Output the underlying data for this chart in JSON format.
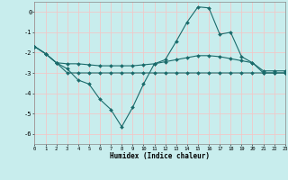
{
  "xlabel": "Humidex (Indice chaleur)",
  "bg_color": "#c8eded",
  "grid_color": "#f0c8c8",
  "line_color": "#1a6b6b",
  "xlim": [
    0,
    23
  ],
  "ylim": [
    -6.5,
    0.5
  ],
  "yticks": [
    0,
    -1,
    -2,
    -3,
    -4,
    -5,
    -6
  ],
  "xticks": [
    0,
    1,
    2,
    3,
    4,
    5,
    6,
    7,
    8,
    9,
    10,
    11,
    12,
    13,
    14,
    15,
    16,
    17,
    18,
    19,
    20,
    21,
    22,
    23
  ],
  "line1_x": [
    0,
    1,
    2,
    3,
    4,
    5,
    6,
    7,
    8,
    9,
    10,
    11,
    12,
    13,
    14,
    15,
    16,
    17,
    18,
    19,
    20,
    21,
    22,
    23
  ],
  "line1_y": [
    -1.7,
    -2.05,
    -2.5,
    -2.8,
    -3.35,
    -3.55,
    -4.3,
    -4.8,
    -5.65,
    -4.7,
    -3.55,
    -2.55,
    -2.35,
    -1.45,
    -0.5,
    0.25,
    0.2,
    -1.1,
    -1.0,
    -2.2,
    -2.5,
    -3.0,
    -3.0,
    -3.0
  ],
  "line2_x": [
    0,
    1,
    2,
    3,
    4,
    5,
    6,
    7,
    8,
    9,
    10,
    11,
    12,
    13,
    14,
    15,
    16,
    17,
    18,
    19,
    20,
    21,
    22,
    23
  ],
  "line2_y": [
    -1.7,
    -2.05,
    -2.5,
    -2.55,
    -2.55,
    -2.6,
    -2.65,
    -2.65,
    -2.65,
    -2.65,
    -2.6,
    -2.55,
    -2.45,
    -2.35,
    -2.25,
    -2.15,
    -2.15,
    -2.2,
    -2.3,
    -2.4,
    -2.5,
    -2.9,
    -2.9,
    -2.9
  ],
  "line3_x": [
    0,
    1,
    2,
    3,
    4,
    5,
    6,
    7,
    8,
    9,
    10,
    11,
    12,
    13,
    14,
    15,
    16,
    17,
    18,
    19,
    20,
    21,
    22,
    23
  ],
  "line3_y": [
    -1.7,
    -2.05,
    -2.5,
    -3.0,
    -3.0,
    -3.0,
    -3.0,
    -3.0,
    -3.0,
    -3.0,
    -3.0,
    -3.0,
    -3.0,
    -3.0,
    -3.0,
    -3.0,
    -3.0,
    -3.0,
    -3.0,
    -3.0,
    -3.0,
    -3.0,
    -3.0,
    -3.0
  ],
  "marker": "D",
  "marker_size": 2.0
}
